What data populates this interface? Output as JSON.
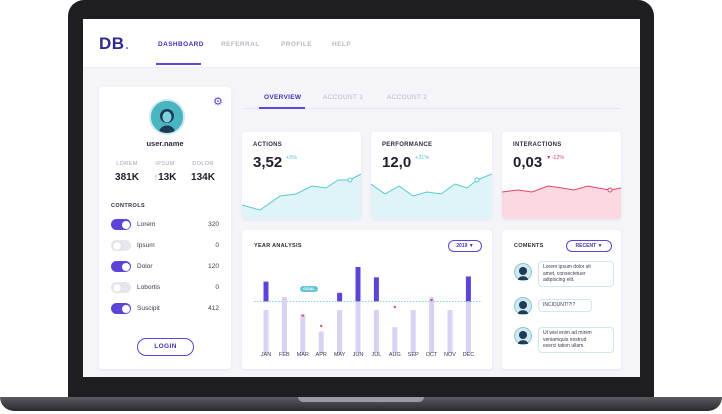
{
  "app": {
    "logo": "DB",
    "logo_dot": "."
  },
  "nav": [
    {
      "label": "DASHBOARD"
    },
    {
      "label": "REFERRAL"
    },
    {
      "label": "PROFILE"
    },
    {
      "label": "HELP"
    }
  ],
  "profile": {
    "username": "user.name",
    "stats": [
      {
        "label": "LOREM",
        "value": "381K"
      },
      {
        "label": "IPSUM",
        "value": "13K",
        "arrow": "↑"
      },
      {
        "label": "DOLOR",
        "value": "134K"
      }
    ],
    "controls_title": "CONTROLS",
    "controls": [
      {
        "label": "Lorem",
        "value": "320",
        "on": true
      },
      {
        "label": "Ipsum",
        "value": "0",
        "on": false
      },
      {
        "label": "Dolor",
        "value": "120",
        "on": true
      },
      {
        "label": "Lobortis",
        "value": "0",
        "on": false
      },
      {
        "label": "Suscipit",
        "value": "412",
        "on": true
      }
    ],
    "login_label": "LOGIN"
  },
  "tabs": [
    {
      "label": "OVERVIEW"
    },
    {
      "label": "ACCOUNT 1"
    },
    {
      "label": "ACCOUNT 2"
    }
  ],
  "kpis": [
    {
      "title": "ACTIONS",
      "value": "3,52",
      "change": "+5%",
      "change_color": "#55c8d6"
    },
    {
      "title": "PERFORMANCE",
      "value": "12,0",
      "change": "+21%",
      "change_color": "#55c8d6"
    },
    {
      "title": "INTERACTIONS",
      "value": "0,03",
      "change": "-12%",
      "change_color": "#e0456a",
      "arrow": "▼"
    }
  ],
  "year_analysis": {
    "title": "YEAR ANALYSIS",
    "year_selector": "2019 ▼",
    "goal_label": "GOAL"
  },
  "chart_data": {
    "type": "bar",
    "title": "YEAR ANALYSIS",
    "categories": [
      "JAN",
      "FEB",
      "MAR",
      "APR",
      "MAY",
      "JUN",
      "JUL",
      "AUG",
      "SEP",
      "OCT",
      "NOV",
      "DEC"
    ],
    "series": [
      {
        "name": "actual",
        "values": [
          0.83,
          0.6,
          0.4,
          0.28,
          0.7,
          1.0,
          0.88,
          0.5,
          0.6,
          0.58,
          0.5,
          0.89
        ]
      },
      {
        "name": "baseline",
        "values": [
          0.5,
          0.65,
          0.45,
          0.25,
          0.5,
          0.65,
          0.5,
          0.3,
          0.5,
          0.65,
          0.5,
          0.6
        ]
      }
    ],
    "goal": 0.6,
    "ylim": [
      0,
      1
    ],
    "markers": [
      "MAR",
      "APR",
      "AUG",
      "OCT"
    ]
  },
  "comments": {
    "title": "COMENTS",
    "filter": "RECENT ▼",
    "items": [
      {
        "text_lines": [
          "Lorem ipsum dolor sit",
          "amet, consectetuer",
          "adipiscing elit."
        ]
      },
      {
        "text_lines": [
          "INCIDUNT!?!?"
        ]
      },
      {
        "text_lines": [
          "Ut wisi enim ad minim",
          "veniamquis nostrud",
          "exerci tation ullam."
        ]
      }
    ]
  },
  "colors": {
    "accent": "#5b44d8",
    "teal": "#55c8d6",
    "pink": "#e0456a",
    "navy": "#2f2a8c"
  }
}
